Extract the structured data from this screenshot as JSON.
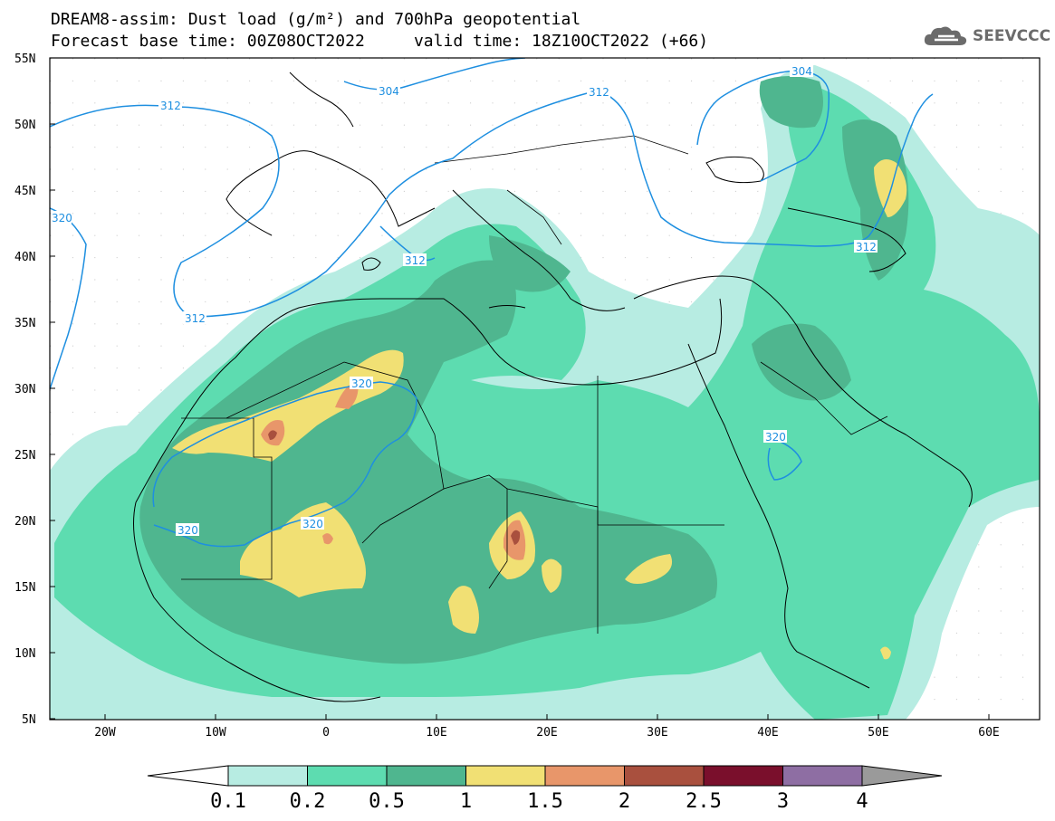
{
  "header": {
    "title_line1": "DREAM8-assim: Dust load (g/m²) and 700hPa geopotential",
    "title_line2": "Forecast base time: 00Z08OCT2022     valid time: 18Z10OCT2022 (+66)"
  },
  "logo": {
    "text": "SEEVCCC",
    "icon": "cloud-logo-icon"
  },
  "map": {
    "lat_ticks": [
      "55N",
      "50N",
      "45N",
      "40N",
      "35N",
      "30N",
      "25N",
      "20N",
      "15N",
      "10N",
      "5N"
    ],
    "lon_ticks": [
      "20W",
      "10W",
      "0",
      "10E",
      "20E",
      "30E",
      "40E",
      "50E",
      "60E"
    ],
    "contour_labels": [
      "312",
      "304",
      "312",
      "320",
      "312",
      "312",
      "304",
      "312",
      "320",
      "320",
      "320",
      "320"
    ]
  },
  "colorbar": {
    "labels": [
      "0.1",
      "0.2",
      "0.5",
      "1",
      "1.5",
      "2",
      "2.5",
      "3",
      "4"
    ],
    "colors": [
      "#ffffff",
      "#b7ece2",
      "#5ddcb0",
      "#4fb68f",
      "#f1e074",
      "#e8966a",
      "#a9503e",
      "#7a0f2c",
      "#8e6ea3",
      "#9a9a9a"
    ]
  },
  "colors": {
    "contour": "#1e8fe0",
    "level1": "#b7ece2",
    "level2": "#5ddcb0",
    "level3": "#4fb68f",
    "level4": "#f1e074",
    "level5": "#e8966a",
    "level6": "#a9503e"
  }
}
